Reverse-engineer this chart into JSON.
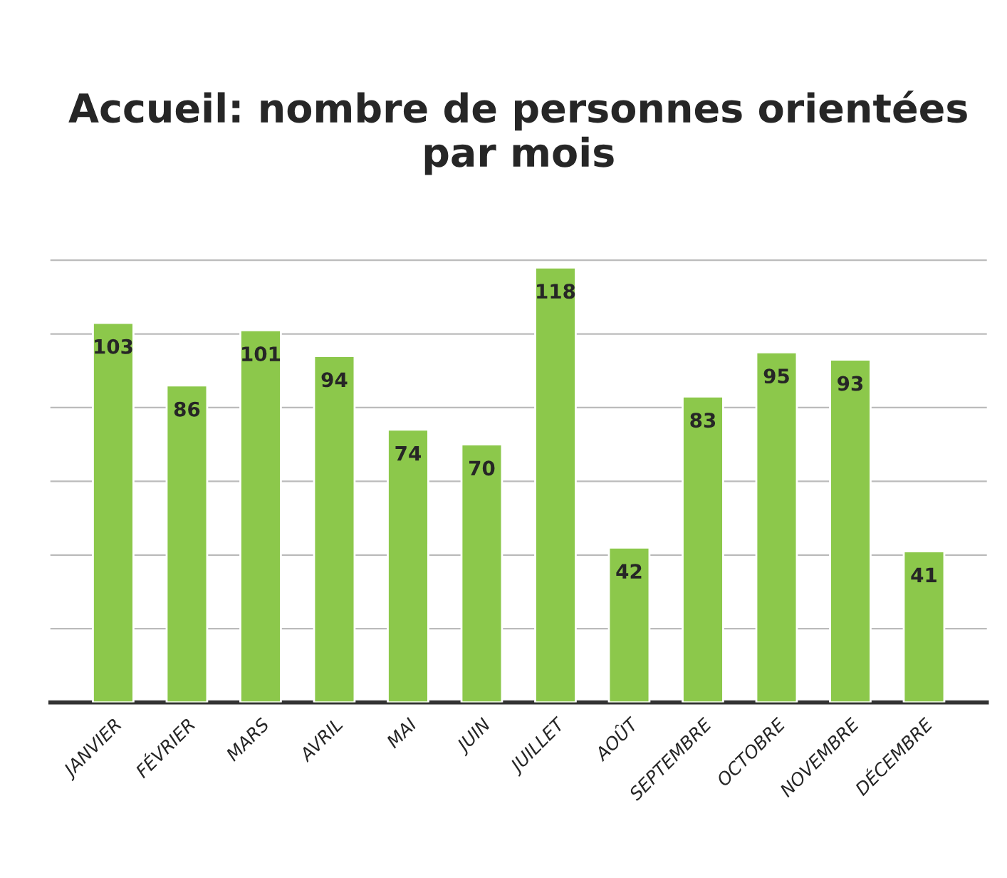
{
  "chart_data": {
    "type": "bar",
    "title": "Accueil: nombre de personnes orientées\npar mois",
    "categories": [
      "JANVIER",
      "FÉVRIER",
      "MARS",
      "AVRIL",
      "MAI",
      "JUIN",
      "JUILLET",
      "AOÛT",
      "SEPTEMBRE",
      "OCTOBRE",
      "NOVEMBRE",
      "DÉCEMBRE"
    ],
    "values": [
      103,
      86,
      101,
      94,
      74,
      70,
      118,
      42,
      83,
      95,
      93,
      41
    ],
    "color": "#8cc84b",
    "data_labels": true,
    "grid": "y",
    "tick_labels": "x"
  }
}
